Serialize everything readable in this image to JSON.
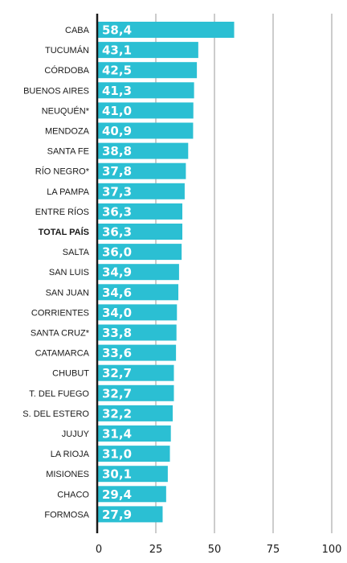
{
  "chart_data": {
    "type": "bar",
    "orientation": "horizontal",
    "categories": [
      "CABA",
      "TUCUMÁN",
      "CÓRDOBA",
      "BUENOS AIRES",
      "NEUQUÉN*",
      "MENDOZA",
      "SANTA FE",
      "RÍO NEGRO*",
      "LA PAMPA",
      "ENTRE RÍOS",
      "TOTAL PAÍS",
      "SALTA",
      "SAN LUIS",
      "SAN JUAN",
      "CORRIENTES",
      "SANTA CRUZ*",
      "CATAMARCA",
      "CHUBUT",
      "T. DEL FUEGO",
      "S. DEL ESTERO",
      "JUJUY",
      "LA RIOJA",
      "MISIONES",
      "CHACO",
      "FORMOSA"
    ],
    "values": [
      58.4,
      43.1,
      42.5,
      41.3,
      41.0,
      40.9,
      38.8,
      37.8,
      37.3,
      36.3,
      36.3,
      36.0,
      34.9,
      34.6,
      34.0,
      33.8,
      33.6,
      32.7,
      32.7,
      32.2,
      31.4,
      31.0,
      30.1,
      29.4,
      27.9
    ],
    "value_labels": [
      "58,4",
      "43,1",
      "42,5",
      "41,3",
      "41,0",
      "40,9",
      "38,8",
      "37,8",
      "37,3",
      "36,3",
      "36,3",
      "36,0",
      "34,9",
      "34,6",
      "34,0",
      "33,8",
      "33,6",
      "32,7",
      "32,7",
      "32,2",
      "31,4",
      "31,0",
      "30,1",
      "29,4",
      "27,9"
    ],
    "highlight_category": "TOTAL PAÍS",
    "xlim": [
      0,
      100
    ],
    "xticks": [
      0,
      25,
      50,
      75,
      100
    ],
    "xtick_labels": [
      "0",
      "25",
      "50",
      "75",
      "100"
    ],
    "grid": true,
    "bar_color": "#2bbfd3",
    "title": "",
    "xlabel": "",
    "ylabel": ""
  }
}
